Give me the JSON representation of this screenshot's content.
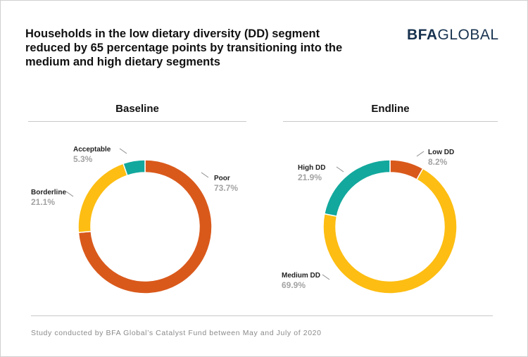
{
  "title": "Households in the low dietary diversity (DD) segment reduced by 65 percentage points by transitioning into the medium and high dietary segments",
  "logo": {
    "bold": "BFA",
    "light": "GLOBAL"
  },
  "footer": "Study conducted by BFA Global’s Catalyst Fund between May and July of 2020",
  "colors": {
    "orange": "#d9591b",
    "yellow": "#fdbd12",
    "teal": "#12a89d",
    "value_grey": "#a3a3a3"
  },
  "chart_data": [
    {
      "type": "pie",
      "title": "Baseline",
      "slices": [
        {
          "label": "Poor",
          "value": 73.7,
          "display": "73.7%",
          "color": "#d9591b"
        },
        {
          "label": "Borderline",
          "value": 21.1,
          "display": "21.1%",
          "color": "#fdbd12"
        },
        {
          "label": "Acceptable",
          "value": 5.3,
          "display": "5.3%",
          "color": "#12a89d"
        }
      ]
    },
    {
      "type": "pie",
      "title": "Endline",
      "slices": [
        {
          "label": "Low DD",
          "value": 8.2,
          "display": "8.2%",
          "color": "#d9591b"
        },
        {
          "label": "Medium DD",
          "value": 69.9,
          "display": "69.9%",
          "color": "#fdbd12"
        },
        {
          "label": "High DD",
          "value": 21.9,
          "display": "21.9%",
          "color": "#12a89d"
        }
      ]
    }
  ]
}
